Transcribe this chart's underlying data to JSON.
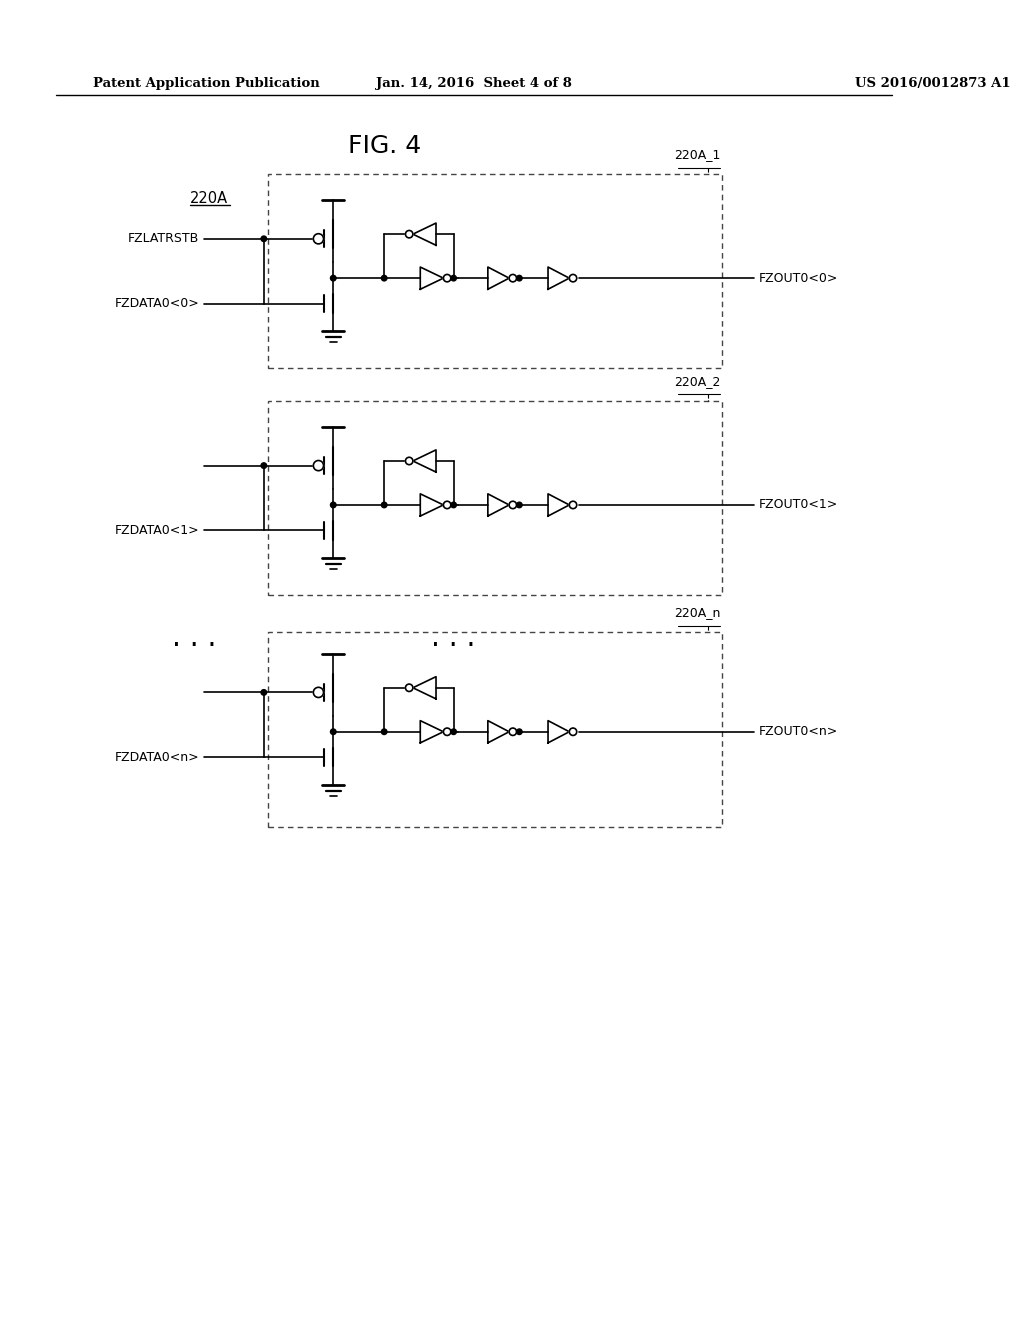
{
  "title": "FIG. 4",
  "header_left": "Patent Application Publication",
  "header_center": "Jan. 14, 2016  Sheet 4 of 8",
  "header_right": "US 2016/0012873 A1",
  "label_220A": "220A",
  "label_220A_1": "220A_1",
  "label_220A_2": "220A_2",
  "label_220A_n": "220A_n",
  "label_fzlatrstb": "FZLATRSTB",
  "label_fzdata0_0": "FZDATA0<0>",
  "label_fzdata0_1": "FZDATA0<1>",
  "label_fzdata0_n": "FZDATA0<n>",
  "label_fzout0_0": "FZOUT0<0>",
  "label_fzout0_1": "FZOUT0<1>",
  "label_fzout0_n": "FZOUT0<n>",
  "bg_color": "#ffffff",
  "line_color": "#000000",
  "text_color": "#000000",
  "tsize": 20
}
